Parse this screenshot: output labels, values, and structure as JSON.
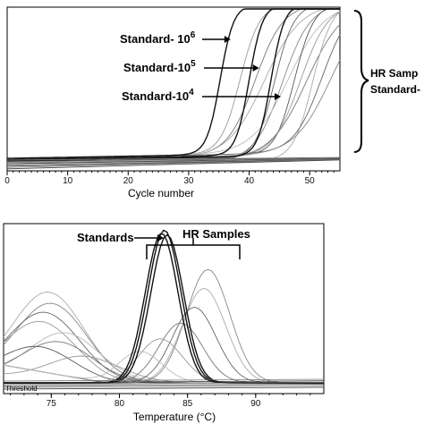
{
  "chart_data": [
    {
      "type": "line",
      "title": "",
      "xlabel": "Cycle number",
      "ylabel": "",
      "xlim": [
        0,
        55
      ],
      "ylim": [
        0,
        1
      ],
      "x_ticks": [
        "0",
        "10",
        "20",
        "30",
        "40",
        "50"
      ],
      "x_tick_values": [
        0,
        10,
        20,
        30,
        40,
        50
      ],
      "grid": false,
      "annotations": [
        {
          "text": "Standard- 10",
          "sup": "6",
          "target_x": 36.5
        },
        {
          "text": "Standard-10",
          "sup": "5",
          "target_x": 41.2
        },
        {
          "text": "Standard-10",
          "sup": "4",
          "target_x": 44.8
        }
      ],
      "bracket_label": [
        "HR Samp",
        "Standard-"
      ],
      "standards_midpoints": [
        35.2,
        40.0,
        43.6
      ],
      "sample_midpoints": [
        38.5,
        41.0,
        42.5,
        44.2,
        45.5,
        46.5,
        47.5,
        48.5,
        49.5,
        50.5,
        52.0,
        53.5
      ]
    },
    {
      "type": "line",
      "title": "",
      "xlabel": "Temperature (°C)",
      "ylabel": "",
      "xlim": [
        71.5,
        95
      ],
      "ylim": [
        0,
        1
      ],
      "x_ticks": [
        "75",
        "80",
        "85",
        "90"
      ],
      "x_tick_values": [
        75,
        80,
        85,
        90
      ],
      "threshold_label": "Threshold",
      "annotations": [
        {
          "text": "Standards",
          "target_x": 82.8
        },
        {
          "text": "HR Samples"
        }
      ],
      "standard_peaks": [
        {
          "center": 83.1,
          "height": 0.95
        },
        {
          "center": 83.3,
          "height": 0.97
        },
        {
          "center": 83.5,
          "height": 0.94
        }
      ],
      "sample_peaks": [
        {
          "center": 74.8,
          "height": 0.55
        },
        {
          "center": 75.0,
          "height": 0.48
        },
        {
          "center": 74.5,
          "height": 0.42
        },
        {
          "center": 74.2,
          "height": 0.36
        },
        {
          "center": 76.0,
          "height": 0.3
        },
        {
          "center": 75.5,
          "height": 0.24
        },
        {
          "center": 74.0,
          "height": 0.2
        },
        {
          "center": 77.5,
          "height": 0.16
        },
        {
          "center": 86.5,
          "height": 0.72
        },
        {
          "center": 86.2,
          "height": 0.6
        },
        {
          "center": 85.5,
          "height": 0.48
        },
        {
          "center": 84.5,
          "height": 0.38
        },
        {
          "center": 83.0,
          "height": 0.28
        },
        {
          "center": 81.5,
          "height": 0.2
        }
      ]
    }
  ]
}
